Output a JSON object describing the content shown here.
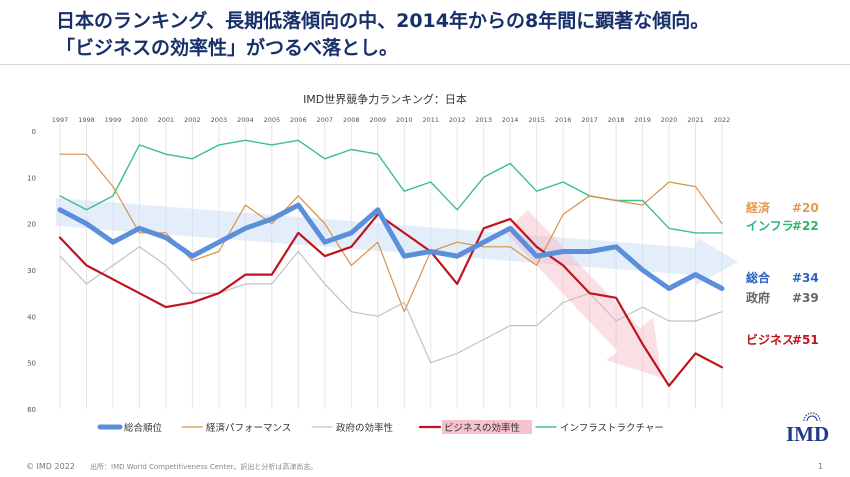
{
  "headline": {
    "line1": "日本のランキング、長期低落傾向の中、2014年からの8年間に顕著な傾向。",
    "line2": "「ビジネスの効率性」がつるべ落とし。"
  },
  "footer": {
    "copyright": "© IMD 2022",
    "source": "出所：IMD World Competitiveness Center。訳出と分析は高津尚志。",
    "page": "1"
  },
  "logo": {
    "text": "IMD"
  },
  "chart_data": {
    "type": "line",
    "title": "IMD世界競争力ランキング：日本",
    "x": [
      "1997",
      "1998",
      "1999",
      "2000",
      "2001",
      "2002",
      "2003",
      "2004",
      "2005",
      "2006",
      "2007",
      "2008",
      "2009",
      "2010",
      "2011",
      "2012",
      "2013",
      "2014",
      "2015",
      "2016",
      "2017",
      "2018",
      "2019",
      "2020",
      "2021",
      "2022"
    ],
    "y_ticks": [
      0,
      10,
      20,
      30,
      40,
      50,
      60
    ],
    "ylim": [
      0,
      60
    ],
    "y_inverted": true,
    "series": [
      {
        "name": "総合順位",
        "color": "#5b8fdc",
        "values": [
          17,
          20,
          24,
          21,
          23,
          27,
          24,
          21,
          19,
          16,
          24,
          22,
          17,
          27,
          26,
          27,
          24,
          21,
          27,
          26,
          26,
          25,
          30,
          34,
          31,
          34
        ]
      },
      {
        "name": "経済パフォーマンス",
        "color": "#d9924a",
        "values": [
          5,
          5,
          12,
          22,
          22,
          28,
          26,
          16,
          20,
          14,
          20,
          29,
          24,
          39,
          26,
          24,
          25,
          25,
          29,
          18,
          14,
          15,
          16,
          11,
          12,
          20
        ]
      },
      {
        "name": "政府の効率性",
        "color": "#c2c2c2",
        "values": [
          27,
          33,
          29,
          25,
          29,
          35,
          35,
          33,
          33,
          26,
          33,
          39,
          40,
          37,
          50,
          48,
          45,
          42,
          42,
          37,
          35,
          41,
          38,
          41,
          41,
          39
        ]
      },
      {
        "name": "ビジネスの効率性",
        "color": "#c0141c",
        "values": [
          23,
          29,
          32,
          35,
          38,
          37,
          35,
          31,
          31,
          22,
          27,
          25,
          18,
          22,
          26,
          33,
          21,
          19,
          25,
          29,
          35,
          36,
          46,
          55,
          48,
          51
        ]
      },
      {
        "name": "インフラストラクチャー",
        "color": "#3cbf8a",
        "values": [
          14,
          17,
          14,
          3,
          5,
          6,
          3,
          2,
          3,
          2,
          6,
          4,
          5,
          13,
          11,
          17,
          10,
          7,
          13,
          11,
          14,
          15,
          15,
          21,
          22,
          22
        ]
      }
    ],
    "end_labels": [
      {
        "category": "経済",
        "rank": "#20",
        "color": "#e39a4c",
        "value": 20
      },
      {
        "category": "インフラ",
        "rank": "#22",
        "color": "#2bb673",
        "value": 22
      },
      {
        "category": "総合",
        "rank": "#34",
        "color": "#2a62c4",
        "value": 34
      },
      {
        "category": "政府",
        "rank": "#39",
        "color": "#666666",
        "value": 39
      },
      {
        "category": "ビジネス",
        "rank": "#51",
        "color": "#c0141c",
        "value": 51
      }
    ],
    "legend_position": "bottom",
    "grid": "vertical"
  }
}
